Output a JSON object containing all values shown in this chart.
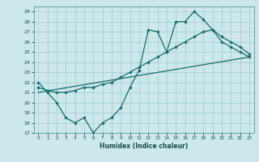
{
  "xlabel": "Humidex (Indice chaleur)",
  "bg_color": "#cce8ea",
  "grid_color": "#aacfd4",
  "line_color": "#1a6b6b",
  "xlim": [
    -0.5,
    23.5
  ],
  "ylim": [
    17,
    29.5
  ],
  "xticks": [
    0,
    1,
    2,
    3,
    4,
    5,
    6,
    7,
    8,
    9,
    10,
    11,
    12,
    13,
    14,
    15,
    16,
    17,
    18,
    19,
    20,
    21,
    22,
    23
  ],
  "yticks": [
    17,
    18,
    19,
    20,
    21,
    22,
    23,
    24,
    25,
    26,
    27,
    28,
    29
  ],
  "line1_x": [
    0,
    1,
    2,
    3,
    4,
    5,
    6,
    7,
    8,
    9,
    10,
    11,
    12,
    13,
    14,
    15,
    16,
    17,
    18,
    19,
    20,
    21,
    22,
    23
  ],
  "line1_y": [
    22.0,
    21.0,
    20.0,
    18.5,
    18.0,
    18.5,
    17.0,
    18.0,
    18.5,
    19.5,
    21.5,
    23.2,
    27.2,
    27.0,
    25.0,
    28.0,
    28.0,
    29.0,
    28.2,
    27.2,
    26.0,
    25.5,
    25.0,
    24.5
  ],
  "line2_x": [
    0,
    1,
    2,
    3,
    4,
    5,
    6,
    7,
    8,
    9,
    10,
    11,
    12,
    13,
    14,
    15,
    16,
    17,
    18,
    19,
    20,
    21,
    22,
    23
  ],
  "line2_y": [
    21.5,
    21.2,
    21.0,
    21.0,
    21.2,
    21.5,
    21.5,
    21.8,
    22.0,
    22.5,
    23.0,
    23.5,
    24.0,
    24.5,
    25.0,
    25.5,
    26.0,
    26.5,
    27.0,
    27.2,
    26.5,
    26.0,
    25.5,
    24.8
  ],
  "line3_x": [
    0,
    23
  ],
  "line3_y": [
    21.0,
    24.5
  ]
}
